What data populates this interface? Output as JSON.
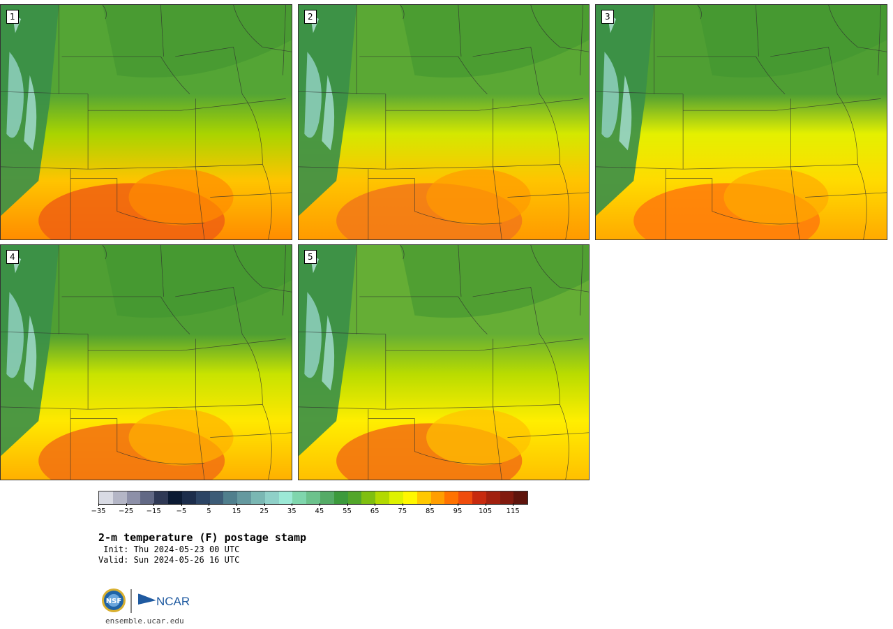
{
  "panels": [
    {
      "id": "1",
      "style": {
        "north": "#54a535",
        "mid": "#a9d400",
        "south": "#ffc400",
        "hot": "#ff8c00",
        "hottest": "#f06010"
      }
    },
    {
      "id": "2",
      "style": {
        "north": "#5aa834",
        "mid": "#d4e800",
        "south": "#ffc400",
        "hot": "#ff9a00",
        "hottest": "#f27818"
      }
    },
    {
      "id": "3",
      "style": {
        "north": "#4f9f33",
        "mid": "#e4f000",
        "south": "#ffdb00",
        "hot": "#ffaa00",
        "hottest": "#ff7a0a"
      }
    },
    {
      "id": "4",
      "style": {
        "north": "#4f9f33",
        "mid": "#c8e300",
        "south": "#ffe800",
        "hot": "#ffb000",
        "hottest": "#f27010"
      }
    },
    {
      "id": "5",
      "style": {
        "north": "#65ae35",
        "mid": "#b9dc00",
        "south": "#ffee00",
        "hot": "#ffc000",
        "hottest": "#f27010"
      }
    }
  ],
  "colorbar": {
    "colors": [
      "#d9dbe4",
      "#b4b6c6",
      "#8d90a8",
      "#626985",
      "#2f3955",
      "#0b1a33",
      "#1c2d4b",
      "#2c4464",
      "#3d5c77",
      "#507f8d",
      "#65999f",
      "#7ab7b3",
      "#8fd0c8",
      "#9ce9d6",
      "#7fd6ad",
      "#6cc28c",
      "#55ab66",
      "#3c9a3c",
      "#52a62a",
      "#7fbf0f",
      "#b2d900",
      "#def200",
      "#fff700",
      "#ffc800",
      "#ff9e00",
      "#ff7200",
      "#ef4c0c",
      "#c72a0e",
      "#a1200e",
      "#811a0e",
      "#5e140c"
    ],
    "tick_labels": [
      "−35",
      "−25",
      "−15",
      "−5",
      "5",
      "15",
      "25",
      "35",
      "45",
      "55",
      "65",
      "75",
      "85",
      "95",
      "105",
      "115"
    ]
  },
  "title": "2-m temperature (F) postage stamp",
  "init": " Init: Thu 2024-05-23 00 UTC",
  "valid": "Valid: Sun 2024-05-26 16 UTC",
  "footer": {
    "seal_text": "NSF",
    "logo_text": "NCAR",
    "site": "ensemble.ucar.edu"
  }
}
